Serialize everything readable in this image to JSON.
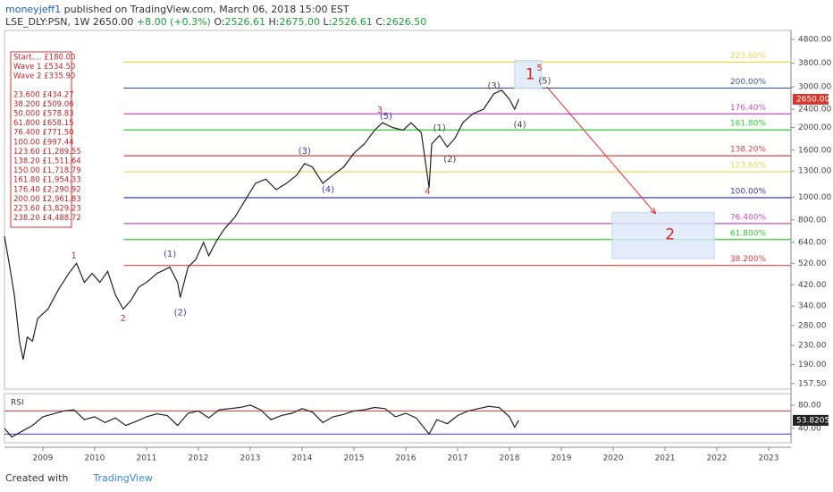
{
  "header": {
    "author": "moneyjeff1",
    "published": "published on TradingView.com, March 06, 2018 15:00 EST",
    "symbol": "LSE_DLY:PSN, 1W",
    "close": "2650.00",
    "change": "+8.00 (+0.3%)",
    "fields": [
      {
        "k": "O:",
        "v": "2526.61"
      },
      {
        "k": "H:",
        "v": "2675.00"
      },
      {
        "k": "L:",
        "v": "2526.61"
      },
      {
        "k": "C:",
        "v": "2626.50"
      }
    ]
  },
  "footer": {
    "text": "Created with",
    "brand": "TradingView"
  },
  "chart_data": [
    {
      "type": "line",
      "log": true,
      "color": "#222222",
      "xlim": [
        2008.26,
        2023.43
      ],
      "xticks": [
        2009,
        2010,
        2011,
        2012,
        2013,
        2014,
        2015,
        2016,
        2017,
        2018,
        2019,
        2020,
        2021,
        2022,
        2023
      ],
      "ylim": [
        149,
        5250
      ],
      "yticks": [
        {
          "value": 4800,
          "label": "4800.00"
        },
        {
          "value": 3800,
          "label": "3800.00"
        },
        {
          "value": 3000,
          "label": "3000.00"
        },
        {
          "value": 2400,
          "label": "2400.00"
        },
        {
          "value": 2000,
          "label": "2000.00"
        },
        {
          "value": 1600,
          "label": "1600.00"
        },
        {
          "value": 1300,
          "label": "1300.00"
        },
        {
          "value": 1000,
          "label": "1000.00"
        },
        {
          "value": 800,
          "label": "800.00"
        },
        {
          "value": 640,
          "label": "640.00"
        },
        {
          "value": 520,
          "label": "520.00"
        },
        {
          "value": 420,
          "label": "420.00"
        },
        {
          "value": 340,
          "label": "340.00"
        },
        {
          "value": 280,
          "label": "280.00"
        },
        {
          "value": 230,
          "label": "230.00"
        },
        {
          "value": 190,
          "label": "190.00"
        },
        {
          "value": 157.5,
          "label": "157.50"
        }
      ],
      "last_price": {
        "value": 2650,
        "label": "2650.00"
      },
      "x": [
        2008.26,
        2008.35,
        2008.45,
        2008.55,
        2008.62,
        2008.7,
        2008.8,
        2008.9,
        2009.1,
        2009.3,
        2009.5,
        2009.65,
        2009.8,
        2009.95,
        2010.1,
        2010.25,
        2010.4,
        2010.55,
        2010.7,
        2010.85,
        2011.0,
        2011.2,
        2011.45,
        2011.6,
        2011.65,
        2011.8,
        2011.95,
        2012.1,
        2012.2,
        2012.35,
        2012.5,
        2012.7,
        2012.9,
        2013.1,
        2013.3,
        2013.5,
        2013.7,
        2013.9,
        2014.05,
        2014.2,
        2014.4,
        2014.6,
        2014.8,
        2015.0,
        2015.2,
        2015.4,
        2015.55,
        2015.75,
        2015.95,
        2016.1,
        2016.3,
        2016.45,
        2016.5,
        2016.65,
        2016.8,
        2016.95,
        2017.1,
        2017.3,
        2017.5,
        2017.7,
        2017.85,
        2018.0,
        2018.1,
        2018.18
      ],
      "values": [
        680,
        520,
        380,
        240,
        200,
        250,
        240,
        300,
        330,
        400,
        470,
        520,
        430,
        470,
        430,
        480,
        380,
        330,
        360,
        410,
        430,
        470,
        500,
        430,
        370,
        500,
        540,
        640,
        560,
        650,
        730,
        820,
        970,
        1150,
        1200,
        1080,
        1150,
        1250,
        1400,
        1350,
        1150,
        1250,
        1350,
        1550,
        1700,
        1950,
        2100,
        2000,
        1950,
        2100,
        1900,
        1100,
        1700,
        1850,
        1650,
        1800,
        2100,
        2300,
        2400,
        2800,
        2900,
        2650,
        2400,
        2650
      ],
      "levels": [
        {
          "label": "223.60%",
          "price": 3829.23,
          "color": "#e6d84a"
        },
        {
          "label": "200.00%",
          "price": 2961.83,
          "color": "#3a5aa8"
        },
        {
          "label": "176.40%",
          "price": 2290.92,
          "color": "#d04ad0"
        },
        {
          "label": "161.80%",
          "price": 1954.33,
          "color": "#33cc33"
        },
        {
          "label": "138.20%",
          "price": 1511.64,
          "color": "#e04040"
        },
        {
          "label": "123.60%",
          "price": 1289.55,
          "color": "#e6d84a"
        },
        {
          "label": "100.00%",
          "price": 997.44,
          "color": "#3a3aa8"
        },
        {
          "label": "76.400%",
          "price": 771.5,
          "color": "#d04ad0"
        },
        {
          "label": "61.800%",
          "price": 658.15,
          "color": "#33cc33"
        },
        {
          "label": "38.200%",
          "price": 509.06,
          "color": "#e04040"
        }
      ],
      "info_box": [
        "Start.... £180.00",
        "Wave 1 £534.50",
        "Wave 2 £335.90",
        "23.600 £434.27",
        "38.200 £509.06",
        "50.000 £578.83",
        "61.800 £658.15",
        "76.400 £771.50",
        "100.00 £997.44",
        "123.60 £1,289.55",
        "138.20 £1,511.64",
        "150.00 £1,718.79",
        "161.80 £1,954.33",
        "176.40 £2,290.92",
        "200.00 £2,961.83",
        "223.60 £3,829.23",
        "238.20 £4,488.72"
      ],
      "wave_labels": [
        {
          "text": "1",
          "x": 2009.6,
          "price": 560,
          "color": "#c0392b"
        },
        {
          "text": "2",
          "x": 2010.55,
          "price": 300,
          "color": "#c0392b"
        },
        {
          "text": "(1)",
          "x": 2011.45,
          "price": 570,
          "color": "#3a3aa8"
        },
        {
          "text": "(2)",
          "x": 2011.65,
          "price": 318,
          "color": "#3a3aa8"
        },
        {
          "text": "(3)",
          "x": 2014.05,
          "price": 1580,
          "color": "#3a3aa8"
        },
        {
          "text": "(4)",
          "x": 2014.5,
          "price": 1080,
          "color": "#3a3aa8"
        },
        {
          "text": "3",
          "x": 2015.5,
          "price": 2380,
          "color": "#c0392b"
        },
        {
          "text": "(5)",
          "x": 2015.62,
          "price": 2240,
          "color": "#3a3aa8"
        },
        {
          "text": "4",
          "x": 2016.42,
          "price": 1060,
          "color": "#c0392b"
        },
        {
          "text": "(1)",
          "x": 2016.65,
          "price": 1990,
          "color": "#444444"
        },
        {
          "text": "(2)",
          "x": 2016.85,
          "price": 1460,
          "color": "#444444"
        },
        {
          "text": "(3)",
          "x": 2017.7,
          "price": 3030,
          "color": "#444444"
        },
        {
          "text": "(4)",
          "x": 2018.2,
          "price": 2060,
          "color": "#444444"
        },
        {
          "text": "5",
          "x": 2018.58,
          "price": 3620,
          "color": "#c0392b"
        },
        {
          "text": "(5)",
          "x": 2018.68,
          "price": 3180,
          "color": "#444444"
        }
      ],
      "target_labels": [
        {
          "text": "1",
          "x": 2018.4,
          "price": 3380,
          "color": "#e02020"
        },
        {
          "text": "2",
          "x": 2021.1,
          "price": 690,
          "color": "#e02020"
        }
      ],
      "boxes": [
        {
          "x": [
            2018.1,
            2018.62
          ],
          "price": [
            2950,
            3900
          ]
        },
        {
          "x": [
            2019.98,
            2021.95
          ],
          "price": [
            545,
            860
          ]
        }
      ],
      "arrow": {
        "x": [
          2018.72,
          2020.82
        ],
        "price": [
          3000,
          850
        ]
      }
    },
    {
      "type": "line",
      "title": "RSI",
      "color": "#222222",
      "ylim": [
        15,
        100
      ],
      "yticks": [
        {
          "value": 80,
          "label": "80.00"
        },
        {
          "value": 40,
          "label": "40.00"
        }
      ],
      "bands": [
        70,
        30
      ],
      "last_value": 53.8205,
      "x": [
        2008.26,
        2008.4,
        2008.6,
        2008.8,
        2009.0,
        2009.2,
        2009.4,
        2009.6,
        2009.8,
        2010.0,
        2010.2,
        2010.4,
        2010.6,
        2010.8,
        2011.0,
        2011.2,
        2011.4,
        2011.6,
        2011.8,
        2012.0,
        2012.2,
        2012.4,
        2012.6,
        2012.8,
        2013.0,
        2013.2,
        2013.4,
        2013.6,
        2013.8,
        2014.0,
        2014.2,
        2014.4,
        2014.6,
        2014.8,
        2015.0,
        2015.2,
        2015.4,
        2015.6,
        2015.8,
        2016.0,
        2016.2,
        2016.45,
        2016.6,
        2016.8,
        2017.0,
        2017.2,
        2017.4,
        2017.6,
        2017.8,
        2018.0,
        2018.1,
        2018.18
      ],
      "values": [
        40,
        25,
        35,
        45,
        60,
        65,
        70,
        72,
        55,
        60,
        50,
        58,
        45,
        52,
        60,
        65,
        62,
        45,
        66,
        70,
        58,
        72,
        74,
        76,
        80,
        72,
        55,
        62,
        66,
        74,
        68,
        50,
        60,
        64,
        70,
        72,
        76,
        74,
        60,
        66,
        58,
        30,
        55,
        48,
        62,
        70,
        74,
        78,
        76,
        60,
        42,
        54
      ]
    }
  ]
}
